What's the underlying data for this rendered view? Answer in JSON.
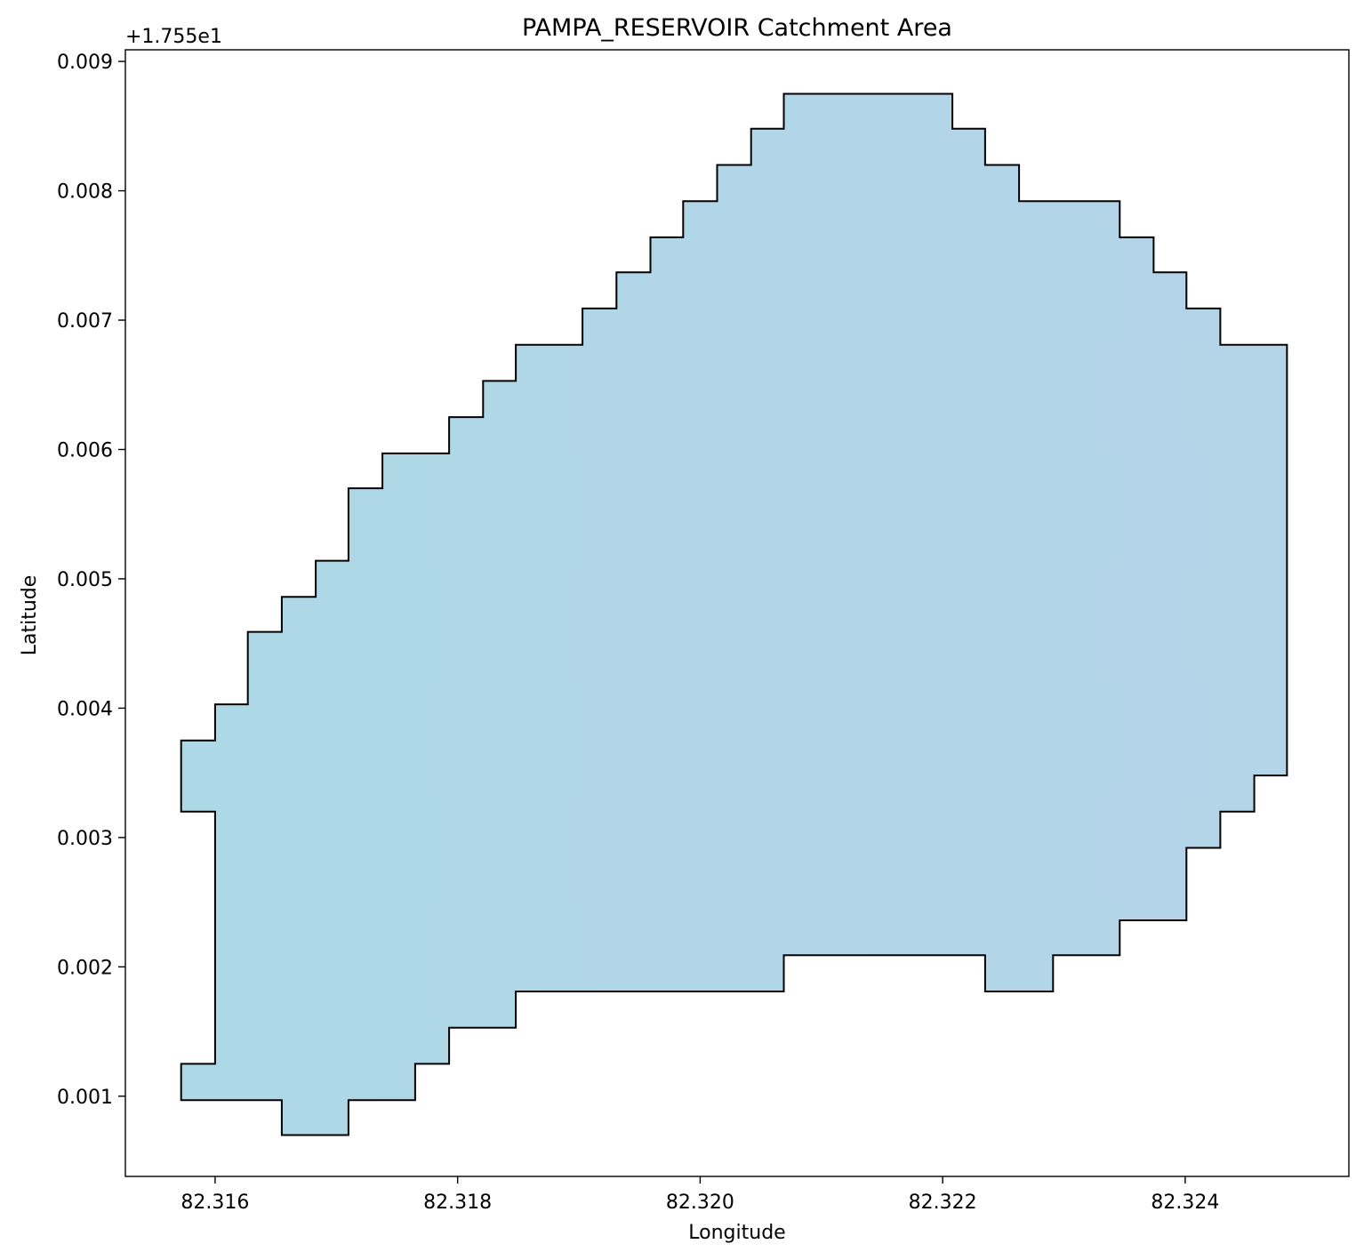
{
  "chart_data": {
    "type": "area",
    "title": "PAMPA_RESERVOIR Catchment Area",
    "xlabel": "Longitude",
    "ylabel": "Latitude",
    "y_offset_label": "+1.755e1",
    "xlim": [
      82.31526,
      82.32535
    ],
    "ylim": [
      0.00038,
      0.00909
    ],
    "x_ticks": [
      {
        "value": 82.316,
        "label": "82.316"
      },
      {
        "value": 82.318,
        "label": "82.318"
      },
      {
        "value": 82.32,
        "label": "82.320"
      },
      {
        "value": 82.322,
        "label": "82.322"
      },
      {
        "value": 82.324,
        "label": "82.324"
      }
    ],
    "y_ticks": [
      {
        "value": 0.001,
        "label": "0.001"
      },
      {
        "value": 0.002,
        "label": "0.002"
      },
      {
        "value": 0.003,
        "label": "0.003"
      },
      {
        "value": 0.004,
        "label": "0.004"
      },
      {
        "value": 0.005,
        "label": "0.005"
      },
      {
        "value": 0.006,
        "label": "0.006"
      },
      {
        "value": 0.007,
        "label": "0.007"
      },
      {
        "value": 0.008,
        "label": "0.008"
      },
      {
        "value": 0.009,
        "label": "0.009"
      }
    ],
    "grid": false,
    "fill_color_left": "#add8e6",
    "fill_color_right": "#b4d4e8",
    "edge_color": "#000000",
    "polygon": [
      [
        82.31572,
        0.00375
      ],
      [
        82.316,
        0.00375
      ],
      [
        82.316,
        0.00403
      ],
      [
        82.31627,
        0.00403
      ],
      [
        82.31627,
        0.00459
      ],
      [
        82.31655,
        0.00459
      ],
      [
        82.31655,
        0.00486
      ],
      [
        82.31683,
        0.00486
      ],
      [
        82.31683,
        0.00514
      ],
      [
        82.3171,
        0.00514
      ],
      [
        82.3171,
        0.0057
      ],
      [
        82.31738,
        0.0057
      ],
      [
        82.31738,
        0.00597
      ],
      [
        82.31793,
        0.00597
      ],
      [
        82.31793,
        0.00625
      ],
      [
        82.31821,
        0.00625
      ],
      [
        82.31821,
        0.00653
      ],
      [
        82.31848,
        0.00653
      ],
      [
        82.31848,
        0.00681
      ],
      [
        82.31903,
        0.00681
      ],
      [
        82.31903,
        0.00709
      ],
      [
        82.31931,
        0.00709
      ],
      [
        82.31931,
        0.00737
      ],
      [
        82.31959,
        0.00737
      ],
      [
        82.31959,
        0.00764
      ],
      [
        82.31986,
        0.00764
      ],
      [
        82.31986,
        0.00792
      ],
      [
        82.32014,
        0.00792
      ],
      [
        82.32014,
        0.0082
      ],
      [
        82.32042,
        0.0082
      ],
      [
        82.32042,
        0.00848
      ],
      [
        82.32069,
        0.00848
      ],
      [
        82.32069,
        0.00875
      ],
      [
        82.32208,
        0.00875
      ],
      [
        82.32208,
        0.00848
      ],
      [
        82.32235,
        0.00848
      ],
      [
        82.32235,
        0.0082
      ],
      [
        82.32263,
        0.0082
      ],
      [
        82.32263,
        0.00792
      ],
      [
        82.32346,
        0.00792
      ],
      [
        82.32346,
        0.00764
      ],
      [
        82.32374,
        0.00764
      ],
      [
        82.32374,
        0.00737
      ],
      [
        82.32401,
        0.00737
      ],
      [
        82.32401,
        0.00709
      ],
      [
        82.32429,
        0.00709
      ],
      [
        82.32429,
        0.00681
      ],
      [
        82.32484,
        0.00681
      ],
      [
        82.32484,
        0.00348
      ],
      [
        82.32457,
        0.00348
      ],
      [
        82.32457,
        0.0032
      ],
      [
        82.32429,
        0.0032
      ],
      [
        82.32429,
        0.00292
      ],
      [
        82.32401,
        0.00292
      ],
      [
        82.32401,
        0.00236
      ],
      [
        82.32346,
        0.00236
      ],
      [
        82.32346,
        0.00209
      ],
      [
        82.32291,
        0.00209
      ],
      [
        82.32291,
        0.00181
      ],
      [
        82.32235,
        0.00181
      ],
      [
        82.32235,
        0.00209
      ],
      [
        82.32069,
        0.00209
      ],
      [
        82.32069,
        0.00181
      ],
      [
        82.31848,
        0.00181
      ],
      [
        82.31848,
        0.00153
      ],
      [
        82.31793,
        0.00153
      ],
      [
        82.31793,
        0.00125
      ],
      [
        82.31765,
        0.00125
      ],
      [
        82.31765,
        0.00097
      ],
      [
        82.3171,
        0.00097
      ],
      [
        82.3171,
        0.0007
      ],
      [
        82.31655,
        0.0007
      ],
      [
        82.31655,
        0.00097
      ],
      [
        82.31572,
        0.00097
      ],
      [
        82.31572,
        0.00125
      ],
      [
        82.316,
        0.00125
      ],
      [
        82.316,
        0.0032
      ],
      [
        82.31572,
        0.0032
      ]
    ]
  }
}
